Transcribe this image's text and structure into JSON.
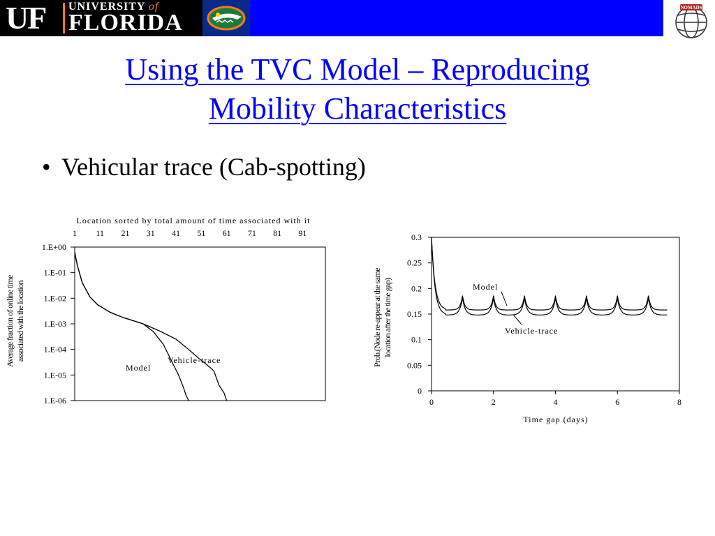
{
  "header": {
    "logo_left": "UF",
    "logo_university": "UNIVERSITY",
    "logo_of": "of",
    "logo_florida": "FLORIDA",
    "logo_right_text": "NOMADS",
    "banner_color": "#0000ff"
  },
  "title": {
    "line1": "Using the TVC Model – Reproducing",
    "line2": "Mobility Characteristics",
    "color": "#0000ff"
  },
  "bullets": [
    {
      "text": "Vehicular trace (Cab-spotting)"
    }
  ],
  "chart_data": [
    {
      "type": "line",
      "title": "",
      "top_axis_label": "Location sorted by total amount of time associated with it",
      "x_ticks": [
        "1",
        "11",
        "21",
        "31",
        "41",
        "51",
        "61",
        "71",
        "81",
        "91"
      ],
      "ylabel_line1": "Average fraction of online time",
      "ylabel_line2": "associated with the location",
      "y_scale": "log",
      "y_ticks": [
        "1.E+00",
        "1.E-01",
        "1.E-02",
        "1.E-03",
        "1.E-04",
        "1.E-05",
        "1.E-06"
      ],
      "xlim": [
        1,
        100
      ],
      "ylim_exp": [
        -6,
        0
      ],
      "series": [
        {
          "name": "Vehicle-trace",
          "x": [
            1,
            2,
            4,
            7,
            10,
            15,
            20,
            28,
            35,
            41,
            46,
            50,
            52,
            55,
            56,
            58,
            60,
            61
          ],
          "y_exp": [
            -0.2,
            -0.7,
            -1.4,
            -1.95,
            -2.25,
            -2.55,
            -2.75,
            -3.0,
            -3.3,
            -3.6,
            -4.0,
            -4.35,
            -4.5,
            -4.75,
            -4.85,
            -5.4,
            -5.7,
            -6.0
          ]
        },
        {
          "name": "Model",
          "x": [
            1,
            2,
            4,
            7,
            10,
            15,
            20,
            28,
            32,
            36,
            38,
            40,
            42,
            44,
            45,
            46
          ],
          "y_exp": [
            -0.2,
            -0.7,
            -1.4,
            -1.95,
            -2.25,
            -2.55,
            -2.75,
            -3.0,
            -3.3,
            -3.8,
            -4.2,
            -4.6,
            -5.0,
            -5.5,
            -5.8,
            -6.0
          ]
        }
      ],
      "annotations": [
        "Vehicle-trace",
        "Model"
      ]
    },
    {
      "type": "line",
      "title": "",
      "xlabel": "Time gap (days)",
      "ylabel_line1": "Prob.(Node re-appear at the same",
      "ylabel_line2": "location after the time gap)",
      "xlim": [
        0,
        8
      ],
      "ylim": [
        0,
        0.3
      ],
      "x_ticks": [
        0,
        2,
        4,
        6,
        8
      ],
      "y_ticks": [
        "0",
        "0.05",
        "0.1",
        "0.15",
        "0.2",
        "0.25",
        "0.3"
      ],
      "series": [
        {
          "name": "Model"
        },
        {
          "name": "Vehicle-trace"
        }
      ],
      "annotations": [
        "Model",
        "Vehicle-trace"
      ]
    }
  ]
}
